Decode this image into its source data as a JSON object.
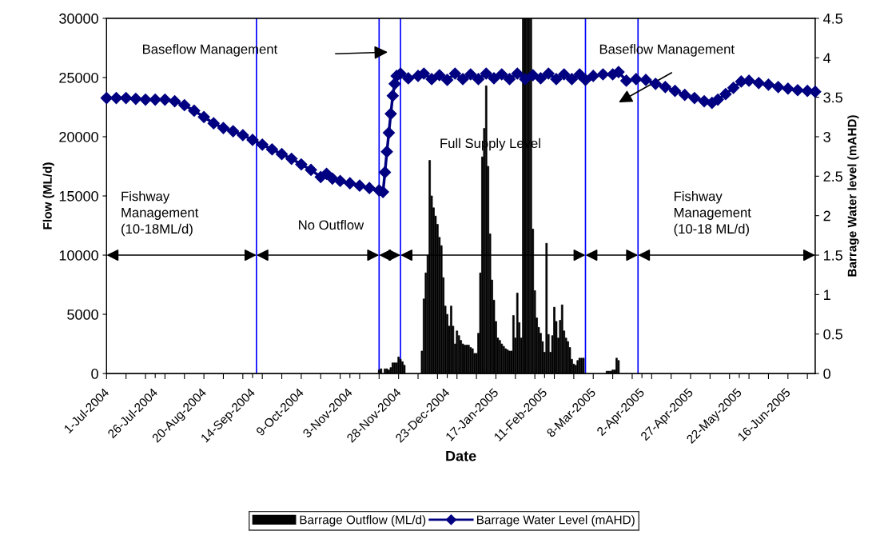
{
  "chart_data": {
    "type": "bar",
    "xlabel": "Date",
    "ylabel": "Flow (ML/d)",
    "y2label": "Barrage Water level (mAHD)",
    "xlim": [
      "2004-07-01",
      "2005-06-30"
    ],
    "xticks": [
      {
        "value": "2004-07-01",
        "label": "1-Jul-2004"
      },
      {
        "value": "2004-07-26",
        "label": "26-Jul-2004"
      },
      {
        "value": "2004-08-20",
        "label": "20-Aug-2004"
      },
      {
        "value": "2004-09-14",
        "label": "14-Sep-2004"
      },
      {
        "value": "2004-10-09",
        "label": "9-Oct-2004"
      },
      {
        "value": "2004-11-03",
        "label": "3-Nov-2004"
      },
      {
        "value": "2004-11-28",
        "label": "28-Nov-2004"
      },
      {
        "value": "2004-12-23",
        "label": "23-Dec-2004"
      },
      {
        "value": "2005-01-17",
        "label": "17-Jan-2005"
      },
      {
        "value": "2005-02-11",
        "label": "11-Feb-2005"
      },
      {
        "value": "2005-03-08",
        "label": "8-Mar-2005"
      },
      {
        "value": "2005-04-02",
        "label": "2-Apr-2005"
      },
      {
        "value": "2005-04-27",
        "label": "27-Apr-2005"
      },
      {
        "value": "2005-05-22",
        "label": "22-May-2005"
      },
      {
        "value": "2005-06-16",
        "label": "16-Jun-2005"
      },
      {
        "value": "2004-07-01",
        "label": null
      },
      {
        "value": "2004-07-11",
        "label": null
      },
      {
        "value": "2004-07-21",
        "label": null
      },
      {
        "value": "2004-07-31",
        "label": null
      },
      {
        "value": "2004-08-10",
        "label": null
      },
      {
        "value": "2004-08-20",
        "label": null
      },
      {
        "value": "2004-08-30",
        "label": null
      },
      {
        "value": "2004-09-09",
        "label": null
      },
      {
        "value": "2004-09-19",
        "label": null
      },
      {
        "value": "2004-09-29",
        "label": null
      },
      {
        "value": "2004-10-09",
        "label": null
      },
      {
        "value": "2004-10-19",
        "label": null
      },
      {
        "value": "2004-10-29",
        "label": null
      },
      {
        "value": "2004-11-08",
        "label": null
      },
      {
        "value": "2004-11-18",
        "label": null
      },
      {
        "value": "2004-11-28",
        "label": null
      },
      {
        "value": "2004-12-08",
        "label": null
      },
      {
        "value": "2004-12-18",
        "label": null
      },
      {
        "value": "2004-12-28",
        "label": null
      },
      {
        "value": "2005-01-07",
        "label": null
      },
      {
        "value": "2005-01-17",
        "label": null
      },
      {
        "value": "2005-01-27",
        "label": null
      },
      {
        "value": "2005-02-06",
        "label": null
      },
      {
        "value": "2005-02-16",
        "label": null
      },
      {
        "value": "2005-02-26",
        "label": null
      },
      {
        "value": "2005-03-08",
        "label": null
      },
      {
        "value": "2005-03-18",
        "label": null
      },
      {
        "value": "2005-03-28",
        "label": null
      },
      {
        "value": "2005-04-07",
        "label": null
      },
      {
        "value": "2005-04-17",
        "label": null
      },
      {
        "value": "2005-04-27",
        "label": null
      },
      {
        "value": "2005-05-07",
        "label": null
      },
      {
        "value": "2005-05-17",
        "label": null
      },
      {
        "value": "2005-05-27",
        "label": null
      },
      {
        "value": "2005-06-06",
        "label": null
      },
      {
        "value": "2005-06-16",
        "label": null
      },
      {
        "value": "2005-06-26",
        "label": null
      }
    ],
    "ylim": [
      0,
      30000
    ],
    "yticks": [
      0,
      5000,
      10000,
      15000,
      20000,
      25000,
      30000
    ],
    "y2lim": [
      0,
      4.5
    ],
    "y2ticks": [
      0,
      0.5,
      1,
      1.5,
      2,
      2.5,
      3,
      3.5,
      4,
      4.5
    ],
    "grid": false,
    "legend": "bottom",
    "series": [
      {
        "name": "Barrage Outflow (ML/d)",
        "color": "#000000",
        "x": [
          "2004-11-18",
          "2004-11-19",
          "2004-11-21",
          "2004-11-22",
          "2004-11-23",
          "2004-11-24",
          "2004-11-25",
          "2004-11-26",
          "2004-11-27",
          "2004-11-28",
          "2004-11-29",
          "2004-11-30",
          "2004-12-01",
          "2004-12-10",
          "2004-12-11",
          "2004-12-12",
          "2004-12-13",
          "2004-12-14",
          "2004-12-15",
          "2004-12-16",
          "2004-12-17",
          "2004-12-18",
          "2004-12-19",
          "2004-12-20",
          "2004-12-21",
          "2004-12-22",
          "2004-12-23",
          "2004-12-24",
          "2004-12-25",
          "2004-12-26",
          "2004-12-27",
          "2004-12-28",
          "2004-12-29",
          "2004-12-30",
          "2004-12-31",
          "2005-01-01",
          "2005-01-02",
          "2005-01-03",
          "2005-01-04",
          "2005-01-05",
          "2005-01-06",
          "2005-01-07",
          "2005-01-08",
          "2005-01-09",
          "2005-01-10",
          "2005-01-11",
          "2005-01-12",
          "2005-01-13",
          "2005-01-14",
          "2005-01-15",
          "2005-01-16",
          "2005-01-17",
          "2005-01-18",
          "2005-01-19",
          "2005-01-20",
          "2005-01-21",
          "2005-01-22",
          "2005-01-23",
          "2005-01-24",
          "2005-01-25",
          "2005-01-26",
          "2005-01-27",
          "2005-01-28",
          "2005-01-29",
          "2005-01-30",
          "2005-01-31",
          "2005-02-01",
          "2005-02-02",
          "2005-02-03",
          "2005-02-04",
          "2005-02-05",
          "2005-02-06",
          "2005-02-07",
          "2005-02-08",
          "2005-02-09",
          "2005-02-10",
          "2005-02-11",
          "2005-02-12",
          "2005-02-13",
          "2005-02-14",
          "2005-02-15",
          "2005-02-16",
          "2005-02-17",
          "2005-02-18",
          "2005-02-19",
          "2005-02-20",
          "2005-02-21",
          "2005-02-22",
          "2005-02-23",
          "2005-02-24",
          "2005-02-25",
          "2005-02-26",
          "2005-02-27",
          "2005-02-28",
          "2005-03-01",
          "2005-03-02",
          "2005-03-03",
          "2005-03-15",
          "2005-03-16",
          "2005-03-17",
          "2005-03-18",
          "2005-03-19",
          "2005-03-20",
          "2005-03-21"
        ],
        "values": [
          300,
          400,
          400,
          400,
          300,
          500,
          900,
          900,
          900,
          1400,
          1200,
          1000,
          700,
          1900,
          6300,
          8500,
          10000,
          18000,
          15000,
          14000,
          13300,
          12600,
          11500,
          10800,
          8100,
          5700,
          5000,
          4000,
          5700,
          4000,
          2500,
          3600,
          3200,
          2800,
          2500,
          2400,
          2400,
          2400,
          2200,
          2100,
          1700,
          1700,
          3400,
          8500,
          18300,
          20700,
          24300,
          17500,
          11800,
          7900,
          6200,
          4400,
          3000,
          2800,
          2500,
          2300,
          2100,
          2000,
          1900,
          1900,
          4900,
          3000,
          6800,
          4300,
          3000,
          30000,
          30000,
          30000,
          30000,
          30000,
          12200,
          7000,
          4700,
          3900,
          3400,
          2700,
          1800,
          11000,
          3300,
          1800,
          3200,
          5600,
          4400,
          3000,
          4500,
          5800,
          3600,
          3000,
          2700,
          2200,
          1200,
          800,
          700,
          1100,
          1300,
          1300,
          1300,
          200,
          200,
          200,
          300,
          300,
          1300,
          1100
        ]
      },
      {
        "name": "Barrage Water Level (mAHD)",
        "type": "line",
        "axis": "y2",
        "color": "#000080",
        "marker": "diamond",
        "line_style": "solid",
        "x": [
          "2004-07-01",
          "2004-07-06",
          "2004-07-11",
          "2004-07-16",
          "2004-07-21",
          "2004-07-26",
          "2004-07-31",
          "2004-08-05",
          "2004-08-10",
          "2004-08-15",
          "2004-08-20",
          "2004-08-25",
          "2004-08-30",
          "2004-09-04",
          "2004-09-09",
          "2004-09-14",
          "2004-09-19",
          "2004-09-24",
          "2004-09-29",
          "2004-10-04",
          "2004-10-09",
          "2004-10-14",
          "2004-10-19",
          "2004-10-22",
          "2004-10-25",
          "2004-10-29",
          "2004-11-03",
          "2004-11-08",
          "2004-11-13",
          "2004-11-18",
          "2004-11-20",
          "2004-11-21",
          "2004-11-22",
          "2004-11-23",
          "2004-11-24",
          "2004-11-25",
          "2004-11-26",
          "2004-11-27",
          "2004-11-29",
          "2004-12-03",
          "2004-12-08",
          "2004-12-11",
          "2004-12-15",
          "2004-12-19",
          "2004-12-23",
          "2004-12-27",
          "2004-12-31",
          "2005-01-04",
          "2005-01-08",
          "2005-01-12",
          "2005-01-16",
          "2005-01-20",
          "2005-01-24",
          "2005-01-28",
          "2005-02-01",
          "2005-02-05",
          "2005-02-09",
          "2005-02-13",
          "2005-02-17",
          "2005-02-21",
          "2005-02-25",
          "2005-03-01",
          "2005-03-04",
          "2005-03-08",
          "2005-03-13",
          "2005-03-18",
          "2005-03-21",
          "2005-03-25",
          "2005-03-30",
          "2005-04-04",
          "2005-04-09",
          "2005-04-14",
          "2005-04-19",
          "2005-04-24",
          "2005-04-29",
          "2005-05-04",
          "2005-05-08",
          "2005-05-11",
          "2005-05-15",
          "2005-05-19",
          "2005-05-23",
          "2005-05-27",
          "2005-06-01",
          "2005-06-06",
          "2005-06-11",
          "2005-06-16",
          "2005-06-21",
          "2005-06-26",
          "2005-06-30"
        ],
        "values": [
          3.49,
          3.49,
          3.49,
          3.48,
          3.47,
          3.47,
          3.47,
          3.45,
          3.4,
          3.33,
          3.25,
          3.17,
          3.11,
          3.07,
          3.02,
          2.96,
          2.9,
          2.84,
          2.78,
          2.72,
          2.65,
          2.58,
          2.49,
          2.53,
          2.47,
          2.44,
          2.41,
          2.38,
          2.35,
          2.32,
          2.3,
          2.55,
          2.81,
          3.05,
          3.29,
          3.52,
          3.67,
          3.77,
          3.8,
          3.74,
          3.77,
          3.8,
          3.73,
          3.78,
          3.72,
          3.8,
          3.73,
          3.79,
          3.73,
          3.8,
          3.74,
          3.79,
          3.73,
          3.8,
          3.73,
          3.78,
          3.74,
          3.8,
          3.73,
          3.79,
          3.73,
          3.79,
          3.72,
          3.77,
          3.79,
          3.79,
          3.82,
          3.71,
          3.73,
          3.72,
          3.67,
          3.63,
          3.58,
          3.53,
          3.49,
          3.45,
          3.43,
          3.47,
          3.54,
          3.62,
          3.7,
          3.71,
          3.68,
          3.66,
          3.63,
          3.61,
          3.59,
          3.58,
          3.57
        ]
      }
    ],
    "ref_lines": [
      {
        "axis": "x",
        "value": "2004-09-16",
        "color": "#0000ff"
      },
      {
        "axis": "x",
        "value": "2004-11-18",
        "color": "#0000ff"
      },
      {
        "axis": "x",
        "value": "2004-11-29",
        "color": "#0000ff"
      },
      {
        "axis": "x",
        "value": "2005-03-04",
        "color": "#0000ff"
      },
      {
        "axis": "x",
        "value": "2005-03-31",
        "color": "#0000ff"
      }
    ],
    "annotations": [
      "Baseflow Management",
      "Baseflow Management",
      "Fishway\nManagement\n(10-18ML/d)",
      "No Outflow",
      "Full Supply Level",
      "Fishway\nManagement\n(10-18 ML/d)"
    ]
  }
}
